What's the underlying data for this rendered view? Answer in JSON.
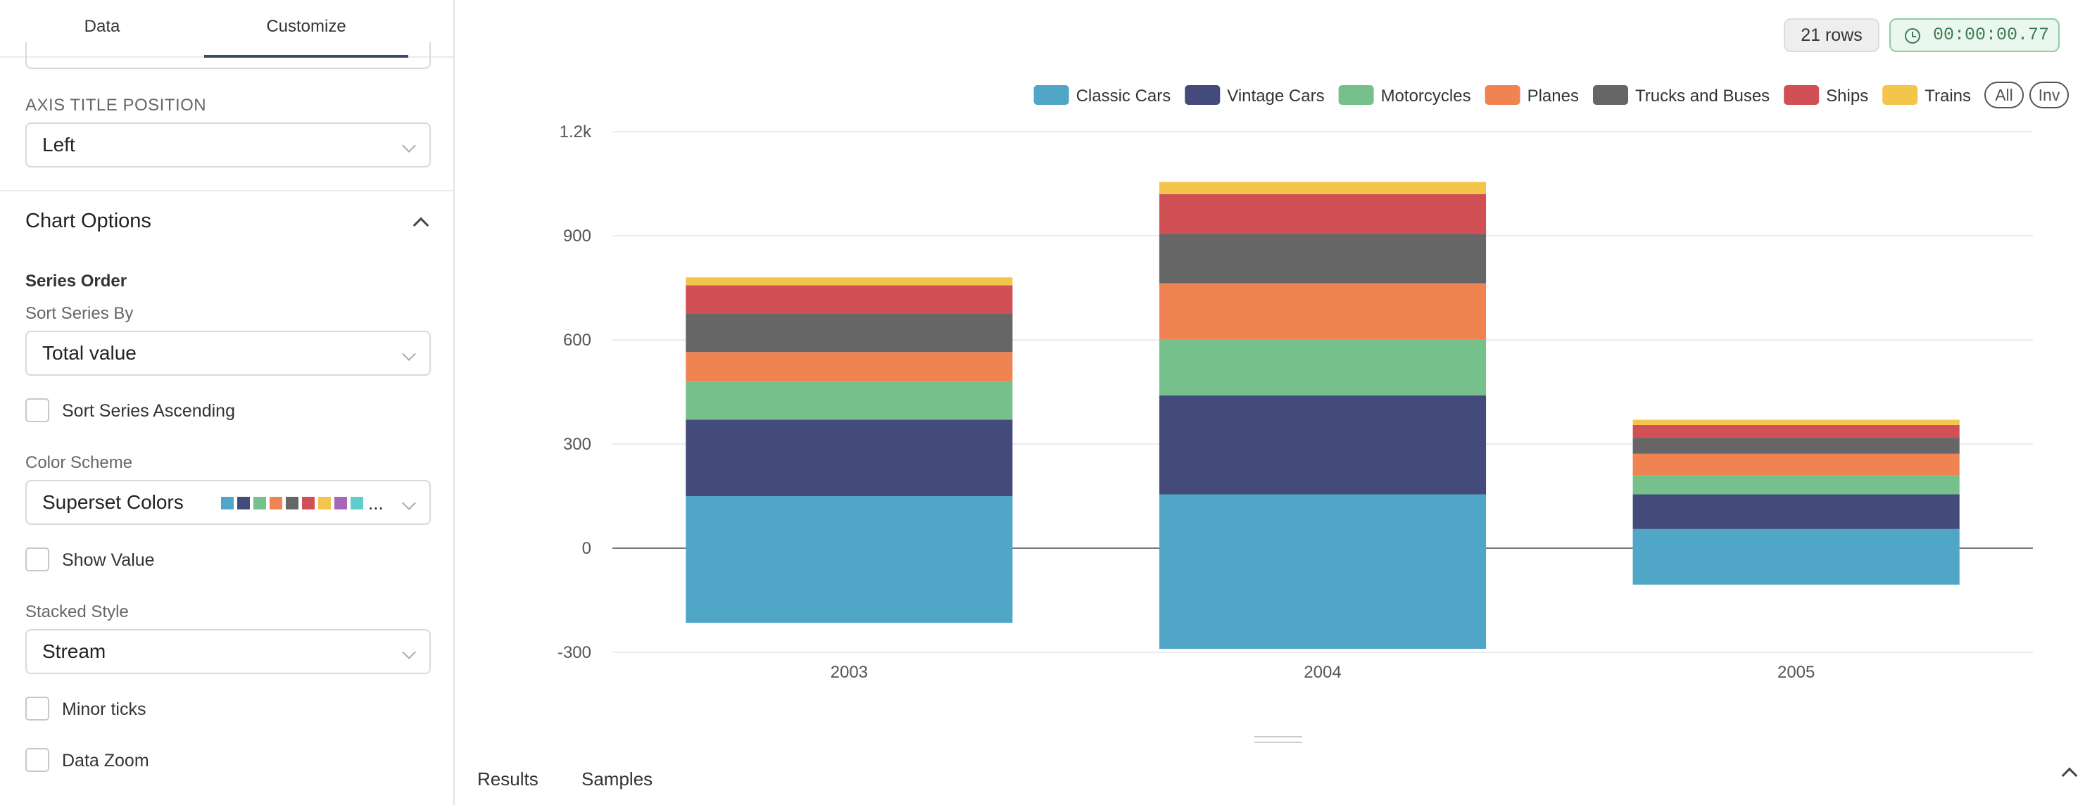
{
  "tabs": {
    "data": "Data",
    "customize": "Customize"
  },
  "customize": {
    "axis_title_position": {
      "label": "AXIS TITLE POSITION",
      "value": "Left"
    },
    "chart_options": {
      "title": "Chart Options",
      "series_order": "Series Order",
      "sort_series_by": {
        "label": "Sort Series By",
        "value": "Total value"
      },
      "sort_series_ascending": "Sort Series Ascending",
      "color_scheme": {
        "label": "Color Scheme",
        "value": "Superset Colors",
        "swatches": [
          "#4fa6c6",
          "#444b7a",
          "#76c08b",
          "#ef8352",
          "#666666",
          "#d05055",
          "#f4c54b",
          "#a866b8",
          "#5ecdcd"
        ],
        "ellipsis": "..."
      },
      "show_value": "Show Value",
      "stacked_style": {
        "label": "Stacked Style",
        "value": "Stream"
      },
      "minor_ticks": "Minor ticks",
      "data_zoom": "Data Zoom"
    }
  },
  "status": {
    "rows": "21 rows",
    "timer": "00:00:00.77"
  },
  "bottom_tabs": {
    "results": "Results",
    "samples": "Samples"
  },
  "legend_controls": {
    "all": "All",
    "inv": "Inv"
  },
  "chart_data": {
    "type": "bar",
    "stacked": true,
    "stacked_style": "stream",
    "categories": [
      "2003",
      "2004",
      "2005"
    ],
    "series": [
      {
        "name": "Classic Cars",
        "color": "#4fa6c6",
        "range": [
          [
            -215,
            150
          ],
          [
            -290,
            155
          ],
          [
            -105,
            55
          ]
        ]
      },
      {
        "name": "Vintage Cars",
        "color": "#444b7a",
        "range": [
          [
            150,
            370
          ],
          [
            155,
            440
          ],
          [
            55,
            155
          ]
        ]
      },
      {
        "name": "Motorcycles",
        "color": "#76c08b",
        "range": [
          [
            370,
            480
          ],
          [
            440,
            602
          ],
          [
            155,
            210
          ]
        ]
      },
      {
        "name": "Planes",
        "color": "#ef8352",
        "range": [
          [
            480,
            565
          ],
          [
            602,
            763
          ],
          [
            210,
            272
          ]
        ]
      },
      {
        "name": "Trucks and Buses",
        "color": "#666666",
        "range": [
          [
            565,
            675
          ],
          [
            763,
            905
          ],
          [
            272,
            318
          ]
        ]
      },
      {
        "name": "Ships",
        "color": "#d05055",
        "range": [
          [
            675,
            757
          ],
          [
            905,
            1020
          ],
          [
            318,
            355
          ]
        ]
      },
      {
        "name": "Trains",
        "color": "#f4c54b",
        "range": [
          [
            757,
            780
          ],
          [
            1020,
            1055
          ],
          [
            355,
            370
          ]
        ]
      }
    ],
    "yticks": [
      "1.2k",
      "900",
      "600",
      "300",
      "0",
      "-300"
    ],
    "ytick_values": [
      1200,
      900,
      600,
      300,
      0,
      -300
    ],
    "ylim": [
      -300,
      1200
    ],
    "grid": true,
    "legend_position": "top-right"
  }
}
